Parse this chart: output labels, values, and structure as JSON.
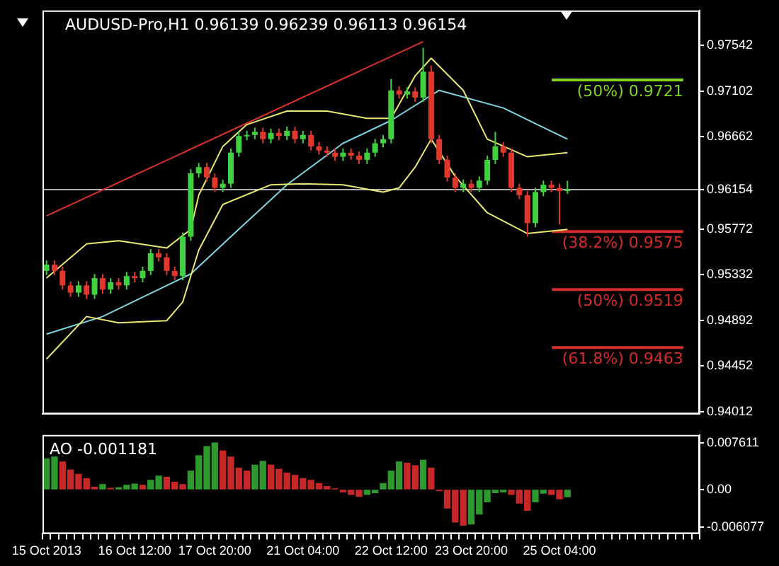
{
  "chart_data": [
    {
      "type": "candlestick",
      "title": "AUDUSD-Pro,H1 0.96139 0.96239 0.96113 0.96154",
      "tick_labels": "y",
      "categories": [
        null,
        null,
        null,
        null,
        null,
        null,
        null,
        null,
        null,
        null,
        null,
        null,
        null,
        null,
        null,
        null,
        null,
        null,
        null,
        null,
        null,
        null,
        null,
        null,
        null,
        null,
        null,
        null,
        null,
        null,
        null,
        null,
        null,
        null,
        null,
        null,
        null,
        null,
        null,
        null,
        null,
        null,
        null,
        null,
        null,
        null,
        null,
        null,
        null,
        null,
        null,
        null,
        null,
        null,
        null,
        null,
        null,
        null,
        null,
        null,
        null,
        null,
        null,
        null,
        null,
        null,
        null,
        null,
        null,
        null,
        null,
        null,
        null,
        null,
        null,
        null,
        null,
        null,
        null,
        null,
        null,
        null
      ],
      "ohlc": [
        [
          0.9537,
          0.9547,
          0.9533,
          0.9543
        ],
        [
          0.9543,
          0.9547,
          0.9533,
          0.9537
        ],
        [
          0.9537,
          0.9541,
          0.9519,
          0.9523
        ],
        [
          0.9523,
          0.9527,
          0.9512,
          0.9516
        ],
        [
          0.9516,
          0.9527,
          0.9512,
          0.9523
        ],
        [
          0.9523,
          0.9527,
          0.951,
          0.9514
        ],
        [
          0.9514,
          0.9534,
          0.951,
          0.953
        ],
        [
          0.953,
          0.9534,
          0.9515,
          0.9519
        ],
        [
          0.9519,
          0.953,
          0.9515,
          0.9526
        ],
        [
          0.9526,
          0.953,
          0.9519,
          0.9523
        ],
        [
          0.9523,
          0.9536,
          0.9519,
          0.9532
        ],
        [
          0.9532,
          0.9536,
          0.9526,
          0.953
        ],
        [
          0.953,
          0.9541,
          0.9526,
          0.9537
        ],
        [
          0.9537,
          0.9558,
          0.9533,
          0.9554
        ],
        [
          0.9554,
          0.9558,
          0.9546,
          0.955
        ],
        [
          0.955,
          0.9554,
          0.9533,
          0.9537
        ],
        [
          0.9537,
          0.9541,
          0.9528,
          0.9532
        ],
        [
          0.9532,
          0.9574,
          0.9528,
          0.957
        ],
        [
          0.957,
          0.9635,
          0.9566,
          0.9631
        ],
        [
          0.9631,
          0.9641,
          0.9627,
          0.9637
        ],
        [
          0.9637,
          0.9641,
          0.9623,
          0.9627
        ],
        [
          0.9627,
          0.9631,
          0.9613,
          0.9617
        ],
        [
          0.9617,
          0.9625,
          0.9613,
          0.9621
        ],
        [
          0.9621,
          0.9655,
          0.9617,
          0.9651
        ],
        [
          0.9651,
          0.9671,
          0.9647,
          0.9667
        ],
        [
          0.9667,
          0.9672,
          0.9663,
          0.9668
        ],
        [
          0.9668,
          0.9675,
          0.9664,
          0.9671
        ],
        [
          0.9671,
          0.9675,
          0.966,
          0.9664
        ],
        [
          0.9664,
          0.9674,
          0.966,
          0.967
        ],
        [
          0.967,
          0.9674,
          0.9663,
          0.9667
        ],
        [
          0.9667,
          0.9676,
          0.9663,
          0.9672
        ],
        [
          0.9672,
          0.9676,
          0.966,
          0.9664
        ],
        [
          0.9664,
          0.9672,
          0.966,
          0.9668
        ],
        [
          0.9668,
          0.9672,
          0.9653,
          0.9657
        ],
        [
          0.9657,
          0.9661,
          0.9649,
          0.9653
        ],
        [
          0.9653,
          0.9657,
          0.9647,
          0.9651
        ],
        [
          0.9651,
          0.9655,
          0.9643,
          0.9647
        ],
        [
          0.9647,
          0.9655,
          0.9643,
          0.9651
        ],
        [
          0.9651,
          0.9655,
          0.9644,
          0.9648
        ],
        [
          0.9648,
          0.9652,
          0.964,
          0.9644
        ],
        [
          0.9644,
          0.9655,
          0.964,
          0.9651
        ],
        [
          0.9651,
          0.9664,
          0.9647,
          0.966
        ],
        [
          0.966,
          0.9668,
          0.9656,
          0.9664
        ],
        [
          0.9664,
          0.9722,
          0.966,
          0.9711
        ],
        [
          0.9711,
          0.9715,
          0.9703,
          0.9707
        ],
        [
          0.9707,
          0.9714,
          0.9703,
          0.971
        ],
        [
          0.971,
          0.9714,
          0.97,
          0.9704
        ],
        [
          0.9704,
          0.9752,
          0.97,
          0.9729
        ],
        [
          0.9729,
          0.9735,
          0.966,
          0.9664
        ],
        [
          0.9664,
          0.9668,
          0.964,
          0.9644
        ],
        [
          0.9644,
          0.9648,
          0.9623,
          0.9627
        ],
        [
          0.9627,
          0.9631,
          0.9613,
          0.9617
        ],
        [
          0.9617,
          0.9625,
          0.9613,
          0.9621
        ],
        [
          0.9621,
          0.9625,
          0.9613,
          0.9617
        ],
        [
          0.9617,
          0.9628,
          0.9613,
          0.9624
        ],
        [
          0.9624,
          0.9648,
          0.962,
          0.9644
        ],
        [
          0.9644,
          0.9671,
          0.964,
          0.9657
        ],
        [
          0.9657,
          0.9661,
          0.9647,
          0.9651
        ],
        [
          0.9651,
          0.9655,
          0.9613,
          0.9617
        ],
        [
          0.9617,
          0.9621,
          0.9606,
          0.961
        ],
        [
          0.961,
          0.9614,
          0.957,
          0.9583
        ],
        [
          0.9583,
          0.9617,
          0.9579,
          0.9613
        ],
        [
          0.9613,
          0.9624,
          0.9609,
          0.962
        ],
        [
          0.962,
          0.9624,
          0.9613,
          0.9617
        ],
        [
          0.9617,
          0.9621,
          0.9582,
          0.9614
        ],
        [
          0.96139,
          0.96239,
          0.96113,
          0.96154
        ],
        null,
        null,
        null,
        null,
        null,
        null,
        null,
        null,
        null,
        null,
        null,
        null,
        null,
        null,
        null,
        null
      ],
      "colors": [
        "#40d040",
        "#e0382c",
        "#e0382c",
        "#e0382c",
        "#40d040",
        "#e0382c",
        "#40d040",
        "#e0382c",
        "#40d040",
        "#e0382c",
        "#40d040",
        "#e0382c",
        "#40d040",
        "#40d040",
        "#e0382c",
        "#e0382c",
        "#e0382c",
        "#40d040",
        "#40d040",
        "#40d040",
        "#e0382c",
        "#e0382c",
        "#40d040",
        "#40d040",
        "#40d040",
        "#40d040",
        "#40d040",
        "#e0382c",
        "#40d040",
        "#e0382c",
        "#40d040",
        "#e0382c",
        "#40d040",
        "#e0382c",
        "#e0382c",
        "#e0382c",
        "#e0382c",
        "#40d040",
        "#e0382c",
        "#e0382c",
        "#40d040",
        "#40d040",
        "#40d040",
        "#40d040",
        "#e0382c",
        "#40d040",
        "#e0382c",
        "#40d040",
        "#e0382c",
        "#e0382c",
        "#e0382c",
        "#e0382c",
        "#40d040",
        "#e0382c",
        "#40d040",
        "#40d040",
        "#40d040",
        "#e0382c",
        "#e0382c",
        "#e0382c",
        "#e0382c",
        "#40d040",
        "#40d040",
        "#e0382c",
        "#e0382c",
        "#40d040",
        null,
        null,
        null,
        null,
        null,
        null,
        null,
        null,
        null,
        null,
        null,
        null,
        null,
        null,
        null,
        null
      ],
      "series": [
        {
          "type": "line",
          "color": "#e8e870",
          "values": [
            0.953,
            null,
            null,
            null,
            null,
            0.9563,
            null,
            null,
            null,
            0.9566,
            null,
            null,
            null,
            null,
            null,
            0.9559,
            null,
            null,
            0.9577,
            0.961,
            null,
            null,
            0.9657,
            null,
            null,
            0.9678,
            null,
            null,
            null,
            null,
            0.9691,
            null,
            null,
            null,
            null,
            0.9691,
            null,
            null,
            null,
            null,
            0.9684,
            null,
            null,
            0.9684,
            null,
            null,
            0.9725,
            null,
            0.9742,
            null,
            null,
            null,
            0.9711,
            null,
            null,
            0.9664,
            null,
            null,
            null,
            null,
            0.9647,
            null,
            null,
            null,
            null,
            0.9651,
            null,
            null,
            null,
            null,
            null,
            null,
            null,
            null,
            null,
            null,
            null,
            null,
            null,
            null,
            null,
            null
          ]
        },
        {
          "type": "line",
          "color": "#e8e870",
          "values": [
            0.9452,
            null,
            null,
            null,
            null,
            0.9493,
            null,
            null,
            null,
            0.9487,
            null,
            null,
            null,
            null,
            null,
            0.9489,
            null,
            0.9507,
            null,
            0.9557,
            null,
            null,
            0.9601,
            null,
            null,
            null,
            null,
            null,
            0.962,
            null,
            null,
            null,
            0.9621,
            null,
            null,
            null,
            null,
            0.962,
            null,
            null,
            null,
            null,
            0.9613,
            null,
            0.9617,
            null,
            0.9637,
            null,
            0.9664,
            null,
            null,
            0.9628,
            null,
            null,
            null,
            0.9593,
            null,
            null,
            null,
            null,
            0.9573,
            null,
            null,
            null,
            null,
            0.9577,
            null,
            null,
            null,
            null,
            null,
            null,
            null,
            null,
            null,
            null,
            null,
            null,
            null,
            null,
            null,
            null
          ]
        },
        {
          "type": "line",
          "color": "#7fd4e0",
          "values": [
            0.9476,
            null,
            null,
            null,
            null,
            null,
            null,
            0.9493,
            null,
            null,
            null,
            null,
            null,
            null,
            null,
            null,
            null,
            null,
            0.9534,
            null,
            null,
            null,
            null,
            0.957,
            null,
            null,
            null,
            null,
            null,
            null,
            0.962,
            null,
            null,
            null,
            null,
            null,
            null,
            0.966,
            null,
            null,
            null,
            null,
            null,
            0.9682,
            null,
            null,
            null,
            null,
            null,
            0.9711,
            null,
            null,
            null,
            null,
            null,
            null,
            null,
            0.9694,
            null,
            null,
            null,
            null,
            null,
            null,
            null,
            0.9664,
            null,
            null,
            null,
            null,
            null,
            null,
            null,
            null,
            null,
            null,
            null,
            null,
            null,
            null,
            null,
            null
          ]
        },
        {
          "type": "line",
          "color": "#e0302a",
          "values": [
            0.959,
            null,
            null,
            null,
            null,
            null,
            null,
            null,
            null,
            null,
            null,
            null,
            null,
            null,
            null,
            null,
            null,
            null,
            null,
            null,
            null,
            null,
            null,
            null,
            null,
            null,
            null,
            null,
            null,
            null,
            null,
            null,
            null,
            null,
            null,
            null,
            null,
            null,
            null,
            null,
            null,
            null,
            null,
            null,
            null,
            null,
            null,
            0.9758,
            null,
            null,
            null,
            null,
            null,
            null,
            null,
            null,
            null,
            null,
            null,
            null,
            null,
            null,
            null,
            null,
            null,
            null,
            null,
            null,
            null,
            null,
            null,
            null,
            null,
            null,
            null,
            null,
            null,
            null,
            null,
            null,
            null,
            null
          ]
        }
      ],
      "ylim": [
        0.9399,
        0.9788
      ],
      "yticks": [
        0.97542,
        0.97102,
        0.96662,
        {
          "value": 0.96154,
          "label": "0.96154"
        },
        0.95772,
        0.95332,
        0.94892,
        0.94452,
        0.94012
      ],
      "ref_lines": [
        {
          "axis": "y",
          "value": 0.96154,
          "label": null,
          "color": "#b0b0b0"
        },
        {
          "axis": "y",
          "value": 0.9721,
          "label": "(50%) 0.9721",
          "color": "#7fd321"
        },
        {
          "axis": "y",
          "value": 0.9575,
          "label": "(38.2%) 0.9575",
          "color": "#d42b2b"
        },
        {
          "axis": "y",
          "value": 0.9519,
          "label": "(50%) 0.9519",
          "color": "#d42b2b"
        },
        {
          "axis": "y",
          "value": 0.9463,
          "label": "(61.8%) 0.9463",
          "color": "#d42b2b"
        }
      ]
    },
    {
      "type": "bar",
      "title": "AO -0.001181",
      "categories": [
        "15 Oct 2013",
        null,
        null,
        null,
        null,
        null,
        null,
        null,
        null,
        null,
        null,
        "16 Oct 12:00",
        null,
        null,
        null,
        null,
        null,
        null,
        null,
        null,
        null,
        "17 Oct 20:00",
        null,
        null,
        null,
        null,
        null,
        null,
        null,
        null,
        null,
        null,
        "21 Oct 04:00",
        null,
        null,
        null,
        null,
        null,
        null,
        null,
        null,
        null,
        null,
        "22 Oct 12:00",
        null,
        null,
        null,
        null,
        null,
        null,
        null,
        null,
        null,
        "23 Oct 20:00",
        null,
        null,
        null,
        null,
        null,
        null,
        null,
        null,
        null,
        null,
        "25 Oct 04:00",
        null,
        null,
        null,
        null,
        null,
        null,
        null,
        null,
        null,
        null,
        null,
        null,
        null,
        null,
        null,
        null,
        null
      ],
      "values": [
        0.005,
        0.0053,
        0.0045,
        0.0032,
        0.0025,
        0.0018,
        0.0004,
        0.0008,
        0.0002,
        0.0003,
        0.0007,
        0.0009,
        0.0007,
        0.0015,
        0.0022,
        0.002,
        0.0012,
        0.0008,
        0.003,
        0.0055,
        0.007,
        0.0076,
        0.0063,
        0.0053,
        0.0035,
        0.003,
        0.004,
        0.0046,
        0.004,
        0.0033,
        0.0027,
        0.0023,
        0.0018,
        0.0015,
        0.001,
        0.0005,
        0.0001,
        -0.0004,
        -0.0008,
        -0.0011,
        -0.0008,
        -0.0005,
        0.001,
        0.003,
        0.0045,
        0.0043,
        0.0039,
        0.0048,
        0.0035,
        -0.0002,
        -0.003,
        -0.0053,
        -0.0058,
        -0.0056,
        -0.004,
        -0.002,
        -0.0005,
        -0.0004,
        -0.0008,
        -0.0022,
        -0.0034,
        -0.002,
        -0.0006,
        -0.0008,
        -0.0015,
        -0.001181,
        null,
        null,
        null,
        null,
        null,
        null,
        null,
        null,
        null,
        null,
        null,
        null,
        null,
        null,
        null,
        null
      ],
      "colors": [
        "#2e9a2e",
        "#2e9a2e",
        "#c62828",
        "#c62828",
        "#c62828",
        "#c62828",
        "#c62828",
        "#2e9a2e",
        "#c62828",
        "#2e9a2e",
        "#2e9a2e",
        "#2e9a2e",
        "#c62828",
        "#2e9a2e",
        "#2e9a2e",
        "#c62828",
        "#c62828",
        "#c62828",
        "#2e9a2e",
        "#2e9a2e",
        "#2e9a2e",
        "#2e9a2e",
        "#c62828",
        "#c62828",
        "#c62828",
        "#c62828",
        "#2e9a2e",
        "#2e9a2e",
        "#c62828",
        "#c62828",
        "#c62828",
        "#c62828",
        "#c62828",
        "#c62828",
        "#c62828",
        "#c62828",
        "#c62828",
        "#c62828",
        "#c62828",
        "#c62828",
        "#2e9a2e",
        "#2e9a2e",
        "#2e9a2e",
        "#2e9a2e",
        "#2e9a2e",
        "#c62828",
        "#c62828",
        "#2e9a2e",
        "#c62828",
        "#c62828",
        "#c62828",
        "#c62828",
        "#c62828",
        "#2e9a2e",
        "#2e9a2e",
        "#2e9a2e",
        "#2e9a2e",
        "#2e9a2e",
        "#c62828",
        "#c62828",
        "#c62828",
        "#2e9a2e",
        "#2e9a2e",
        "#c62828",
        "#c62828",
        "#2e9a2e",
        null,
        null,
        null,
        null,
        null,
        null,
        null,
        null,
        null,
        null,
        null,
        null,
        null,
        null,
        null,
        null
      ],
      "ylim": [
        -0.0072,
        0.0089
      ],
      "yticks": [
        0.007611,
        {
          "value": 0,
          "label": "0.00"
        },
        -0.006077
      ]
    }
  ]
}
